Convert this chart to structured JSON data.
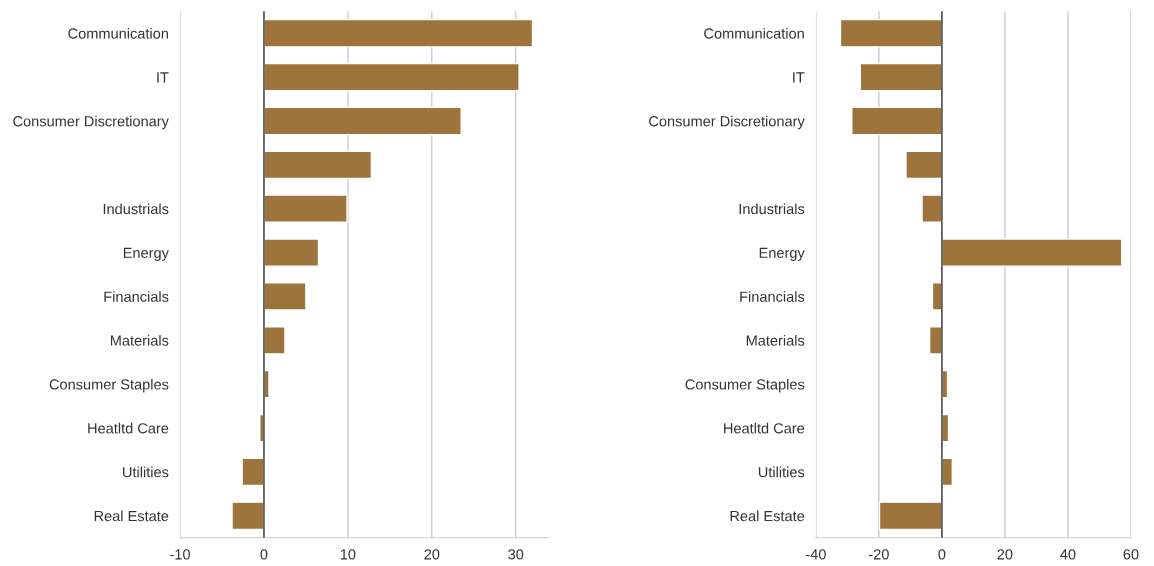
{
  "chart_data": [
    {
      "type": "bar",
      "orientation": "horizontal",
      "categories": [
        "Communication",
        "IT",
        "Consumer Discretionary",
        null,
        "Industrials",
        "Energy",
        "Financials",
        "Materials",
        "Consumer Staples",
        "Heatltd Care",
        "Utilities",
        "Real Estate"
      ],
      "series": [
        {
          "color": "#9c743c",
          "values": [
            32.0,
            30.4,
            23.5,
            12.8,
            9.9,
            6.5,
            5.0,
            2.5,
            0.6,
            -0.5,
            -2.6,
            -3.8
          ]
        }
      ],
      "xlim": [
        -10,
        34
      ],
      "xticks": [
        -10,
        0,
        10,
        20,
        30
      ],
      "grid": "x",
      "legend": false,
      "ref_lines": [
        {
          "axis": "x",
          "value": 0,
          "color": "#555555"
        }
      ]
    },
    {
      "type": "bar",
      "orientation": "horizontal",
      "categories": [
        "Communication",
        "IT",
        "Consumer Discretionary",
        null,
        "Industrials",
        "Energy",
        "Financials",
        "Materials",
        "Consumer Staples",
        "Heatltd Care",
        "Utilities",
        "Real Estate"
      ],
      "series": [
        {
          "color": "#9c743c",
          "values": [
            -32.2,
            -25.9,
            -28.6,
            -11.4,
            -6.3,
            57.1,
            -3.0,
            -3.9,
            1.8,
            2.1,
            3.3,
            -19.8
          ]
        }
      ],
      "xlim": [
        -40,
        60
      ],
      "xticks": [
        -40,
        -20,
        0,
        20,
        40,
        60
      ],
      "grid": "x",
      "legend": false,
      "ref_lines": [
        {
          "axis": "x",
          "value": 0,
          "color": "#555555"
        }
      ]
    }
  ]
}
